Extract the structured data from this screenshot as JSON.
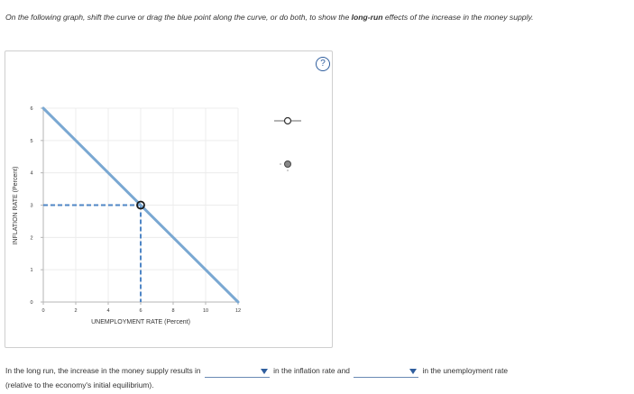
{
  "instructions": {
    "part1": "On the following graph, shift the curve or drag the blue point along the curve, or do both, to show the ",
    "bold": "long-run",
    "part2": " effects of the increase in the money supply."
  },
  "help_label": "?",
  "graph": {
    "ylabel": "INFLATION RATE (Percent)",
    "xlabel": "UNEMPLOYMENT RATE (Percent)",
    "x_ticks": [
      "0",
      "2",
      "4",
      "6",
      "8",
      "10",
      "12"
    ],
    "y_ticks": [
      "0",
      "1",
      "2",
      "3",
      "4",
      "5",
      "6"
    ],
    "curve": {
      "from": [
        0,
        6
      ],
      "to": [
        12,
        0
      ]
    },
    "point": {
      "x": 6,
      "y": 3
    },
    "colors": {
      "curve": "#7aa8d2",
      "dashed": "#4f86c6",
      "point_stroke": "#1a1a1a",
      "grid": "#ececec"
    }
  },
  "tools": [
    "line-tool-icon",
    "point-tool-icon"
  ],
  "answer": {
    "text1": "In the long run, the increase in the money supply results in",
    "text2": "in the inflation rate and",
    "text3": "in the unemployment rate",
    "text4": "(relative to the economy's initial equilibrium).",
    "dropdown1_value": "",
    "dropdown2_value": ""
  }
}
